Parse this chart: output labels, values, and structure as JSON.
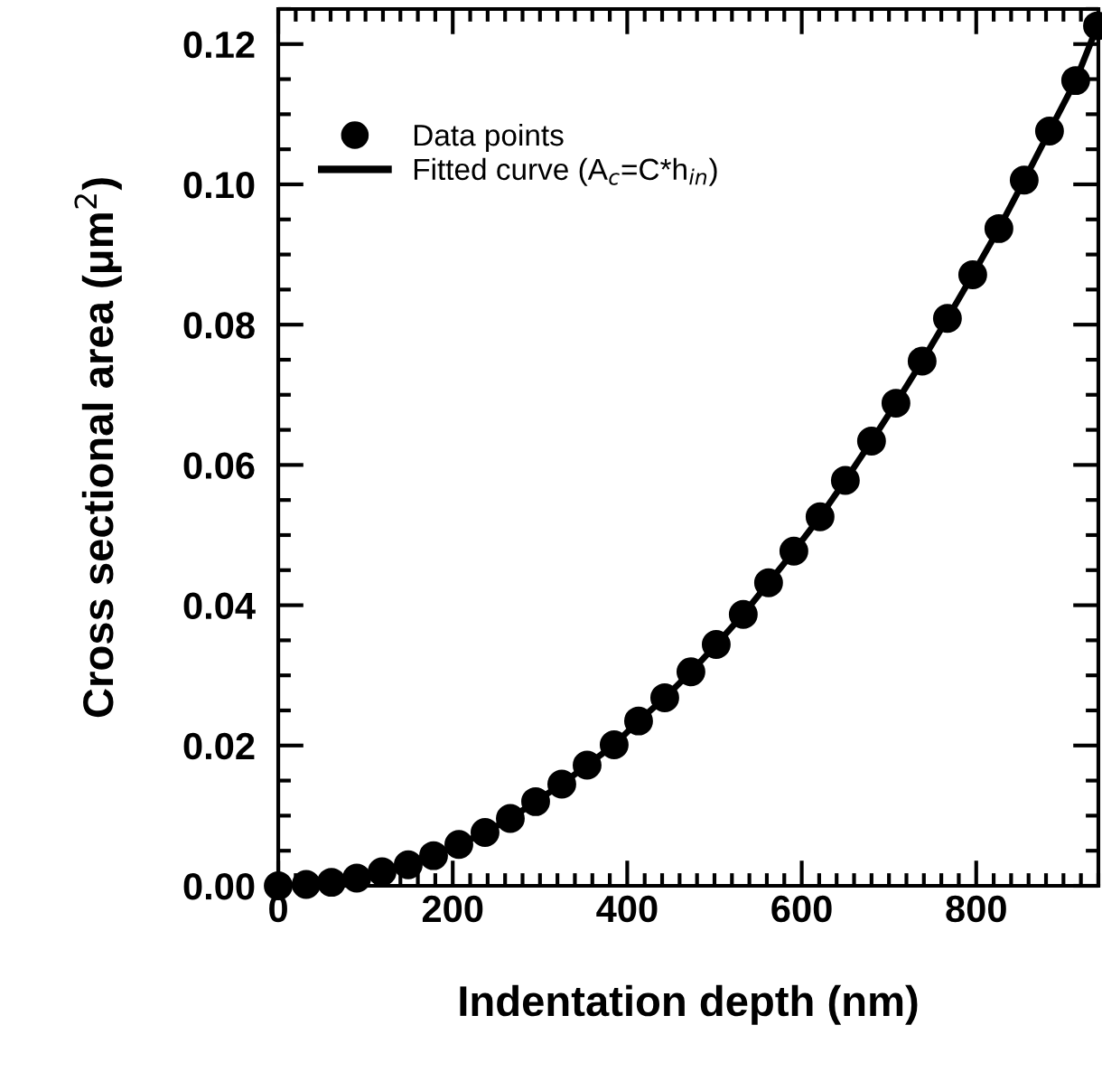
{
  "chart_data": {
    "type": "scatter",
    "xlabel": "Indentation depth (nm)",
    "ylabel": "Cross sectional area (μm$^{2}$)",
    "x": [
      0,
      32,
      61,
      90,
      119,
      149,
      178,
      207,
      237,
      266,
      295,
      325,
      354,
      385,
      413,
      443,
      473,
      502,
      533,
      562,
      591,
      621,
      650,
      680,
      708,
      738,
      767,
      796,
      826,
      855,
      884,
      914,
      939
    ],
    "series": [
      {
        "name": "Data points",
        "color": "#000000",
        "marker": "circle",
        "values": [
          0,
          0.0002,
          0.0005,
          0.0011,
          0.002,
          0.003,
          0.0043,
          0.0059,
          0.0076,
          0.0096,
          0.012,
          0.0145,
          0.0172,
          0.0201,
          0.0235,
          0.0268,
          0.0305,
          0.0344,
          0.0387,
          0.0432,
          0.0477,
          0.0526,
          0.0578,
          0.0634,
          0.0688,
          0.0748,
          0.0809,
          0.0871,
          0.0937,
          0.1006,
          0.1076,
          0.1148,
          0.1226
        ]
      },
      {
        "name": "Fitted curve (A$_{c}$=C*h$_{in}$)",
        "type": "line",
        "color": "#000000",
        "line_style": "solid",
        "values": [
          0,
          0.0002,
          0.0005,
          0.0011,
          0.002,
          0.003,
          0.0043,
          0.0059,
          0.0076,
          0.0096,
          0.012,
          0.0145,
          0.0172,
          0.0201,
          0.0235,
          0.0268,
          0.0305,
          0.0344,
          0.0387,
          0.0432,
          0.0477,
          0.0526,
          0.0578,
          0.0634,
          0.0688,
          0.0748,
          0.0809,
          0.0871,
          0.0937,
          0.1006,
          0.1076,
          0.1148,
          0.1226
        ]
      }
    ],
    "xlim": [
      0,
      940
    ],
    "xticks": [
      0,
      200,
      400,
      600,
      800
    ],
    "ylim": [
      0,
      0.125
    ],
    "yticks": [
      {
        "value": 0,
        "label": "0.00"
      },
      {
        "value": 0.02,
        "label": "0.02"
      },
      {
        "value": 0.04,
        "label": "0.04"
      },
      {
        "value": 0.06,
        "label": "0.06"
      },
      {
        "value": 0.08,
        "label": "0.08"
      },
      {
        "value": 0.1,
        "label": "0.10"
      },
      {
        "value": 0.12,
        "label": "0.12"
      }
    ],
    "legend": "top left",
    "grid": false
  }
}
